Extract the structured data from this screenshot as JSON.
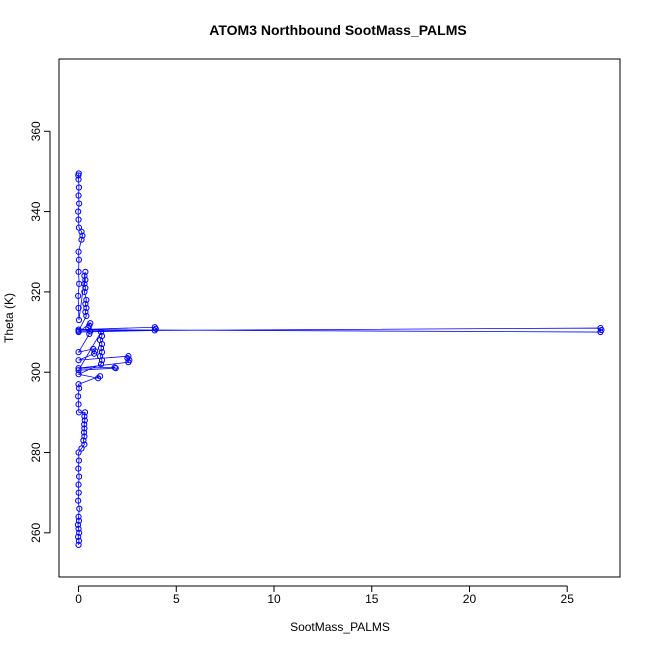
{
  "chart_data": {
    "type": "scatter",
    "title": "ATOM3 Northbound SootMass_PALMS",
    "xlabel": "SootMass_PALMS",
    "ylabel": "Theta (K)",
    "xlim": [
      -1.0,
      27.7
    ],
    "ylim": [
      249,
      378
    ],
    "x_ticks": [
      0,
      5,
      10,
      15,
      20,
      25
    ],
    "y_ticks": [
      260,
      280,
      300,
      320,
      340,
      360
    ],
    "marker": "open-circle",
    "connected": true,
    "color": "#0000ff",
    "grid": false,
    "series": [
      {
        "points": [
          [
            0.0,
            257
          ],
          [
            0.02,
            258
          ],
          [
            -0.02,
            259
          ],
          [
            0.03,
            260
          ],
          [
            0.0,
            261
          ],
          [
            -0.03,
            262
          ],
          [
            0.02,
            263
          ],
          [
            0.0,
            264
          ],
          [
            0.04,
            266
          ],
          [
            -0.02,
            268
          ],
          [
            0.01,
            270
          ],
          [
            0.0,
            272
          ],
          [
            0.03,
            274
          ],
          [
            -0.01,
            276
          ],
          [
            0.02,
            278
          ],
          [
            0.0,
            280
          ],
          [
            0.15,
            281
          ],
          [
            0.3,
            282
          ],
          [
            0.25,
            283
          ],
          [
            0.3,
            284
          ],
          [
            0.28,
            285
          ],
          [
            0.3,
            286
          ],
          [
            0.29,
            287
          ],
          [
            0.32,
            288
          ],
          [
            0.3,
            289
          ],
          [
            0.33,
            290
          ],
          [
            0.02,
            290
          ],
          [
            0.0,
            292
          ],
          [
            -0.02,
            294
          ],
          [
            0.03,
            296
          ],
          [
            0.0,
            297
          ],
          [
            1.1,
            299
          ],
          [
            1.0,
            298.5
          ],
          [
            0.0,
            299.5
          ],
          [
            1.15,
            302
          ],
          [
            1.2,
            303
          ],
          [
            1.1,
            304
          ],
          [
            1.2,
            305
          ],
          [
            1.15,
            306
          ],
          [
            1.2,
            307
          ],
          [
            1.1,
            308
          ],
          [
            1.2,
            309
          ],
          [
            1.15,
            310
          ],
          [
            0.0,
            300.5
          ],
          [
            1.9,
            301
          ],
          [
            1.85,
            301.2
          ],
          [
            0.0,
            301
          ],
          [
            2.55,
            302.5
          ],
          [
            2.6,
            303
          ],
          [
            2.5,
            303.5
          ],
          [
            2.55,
            304
          ],
          [
            0.0,
            303
          ],
          [
            0.8,
            304.6
          ],
          [
            0.85,
            305.2
          ],
          [
            0.75,
            305.8
          ],
          [
            0.0,
            305
          ],
          [
            0.55,
            309.5
          ],
          [
            0.6,
            310.2
          ],
          [
            0.5,
            311
          ],
          [
            0.55,
            311.6
          ],
          [
            0.6,
            312.2
          ],
          [
            0.0,
            310
          ],
          [
            3.9,
            310.4
          ],
          [
            3.95,
            310.8
          ],
          [
            3.9,
            311.2
          ],
          [
            0.0,
            310.6
          ],
          [
            26.7,
            310
          ],
          [
            26.75,
            310.5
          ],
          [
            26.7,
            311
          ],
          [
            0.0,
            310.3
          ],
          [
            0.4,
            314
          ],
          [
            0.35,
            315
          ],
          [
            0.4,
            316
          ],
          [
            0.35,
            317
          ],
          [
            0.4,
            318
          ],
          [
            0.3,
            320
          ],
          [
            0.35,
            321
          ],
          [
            0.3,
            322
          ],
          [
            0.35,
            323
          ],
          [
            0.3,
            324
          ],
          [
            0.35,
            325
          ],
          [
            0.02,
            313
          ],
          [
            0.0,
            316
          ],
          [
            -0.02,
            319
          ],
          [
            0.03,
            322
          ],
          [
            0.0,
            325
          ],
          [
            0.02,
            328
          ],
          [
            0.0,
            330
          ],
          [
            0.15,
            333
          ],
          [
            0.2,
            334
          ],
          [
            0.15,
            335
          ],
          [
            0.02,
            336
          ],
          [
            0.0,
            338
          ],
          [
            -0.02,
            340
          ],
          [
            0.03,
            342
          ],
          [
            0.0,
            344
          ],
          [
            0.02,
            346
          ],
          [
            0.0,
            348
          ],
          [
            -0.01,
            349
          ],
          [
            0.01,
            349.5
          ]
        ]
      }
    ]
  }
}
